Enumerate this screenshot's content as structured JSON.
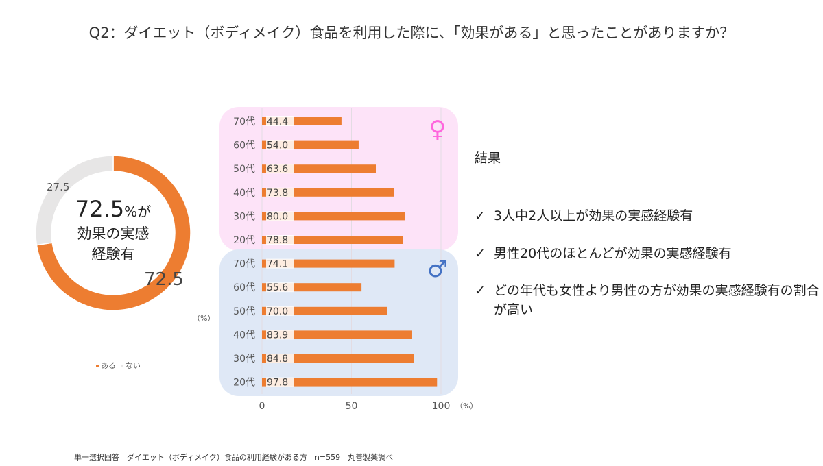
{
  "title": "Q2：ダイエット（ボディメイク）食品を利用した際に、「効果がある」と思ったことがありますか？",
  "chart_data": [
    {
      "type": "pie",
      "variant": "donut",
      "slices": [
        {
          "label": "ある",
          "value": 72.5,
          "color": "#ed7d31"
        },
        {
          "label": "ない",
          "value": 27.5,
          "color": "#e7e6e6"
        }
      ],
      "center_text": {
        "value": "72.5",
        "suffix": "%が",
        "line2": "効果の実感",
        "line3": "経験有"
      },
      "unit": "（%）",
      "legend": [
        "ある",
        "ない"
      ],
      "legend_placement": "bottom"
    },
    {
      "type": "bar",
      "orientation": "horizontal",
      "unit": "（%）",
      "xlim": [
        0,
        100
      ],
      "xticks": [
        "0",
        "50",
        "100"
      ],
      "color": "#ed7d31",
      "groups": [
        {
          "symbol": "♀",
          "color": "#ff66dd",
          "bg": "#fde3f8",
          "categories": [
            "70代",
            "60代",
            "50代",
            "40代",
            "30代",
            "20代"
          ],
          "values": [
            44.4,
            54.0,
            63.6,
            73.8,
            80.0,
            78.8
          ]
        },
        {
          "symbol": "♂",
          "color": "#4472c4",
          "bg": "#dfe8f6",
          "categories": [
            "70代",
            "60代",
            "50代",
            "40代",
            "30代",
            "20代"
          ],
          "values": [
            74.1,
            55.6,
            70.0,
            83.9,
            84.8,
            97.8
          ]
        }
      ]
    }
  ],
  "results": {
    "heading": "結果",
    "items": [
      "3人中2人以上が効果の実感経験有",
      "男性20代のほとんどが効果の実感経験有",
      "どの年代も女性より男性の方が効果の実感経験有の割合が高い"
    ],
    "check": "✓"
  },
  "footer": "単一選択回答　ダイエット（ボディメイク）食品の利用経験がある方　n=559　丸善製薬調べ"
}
